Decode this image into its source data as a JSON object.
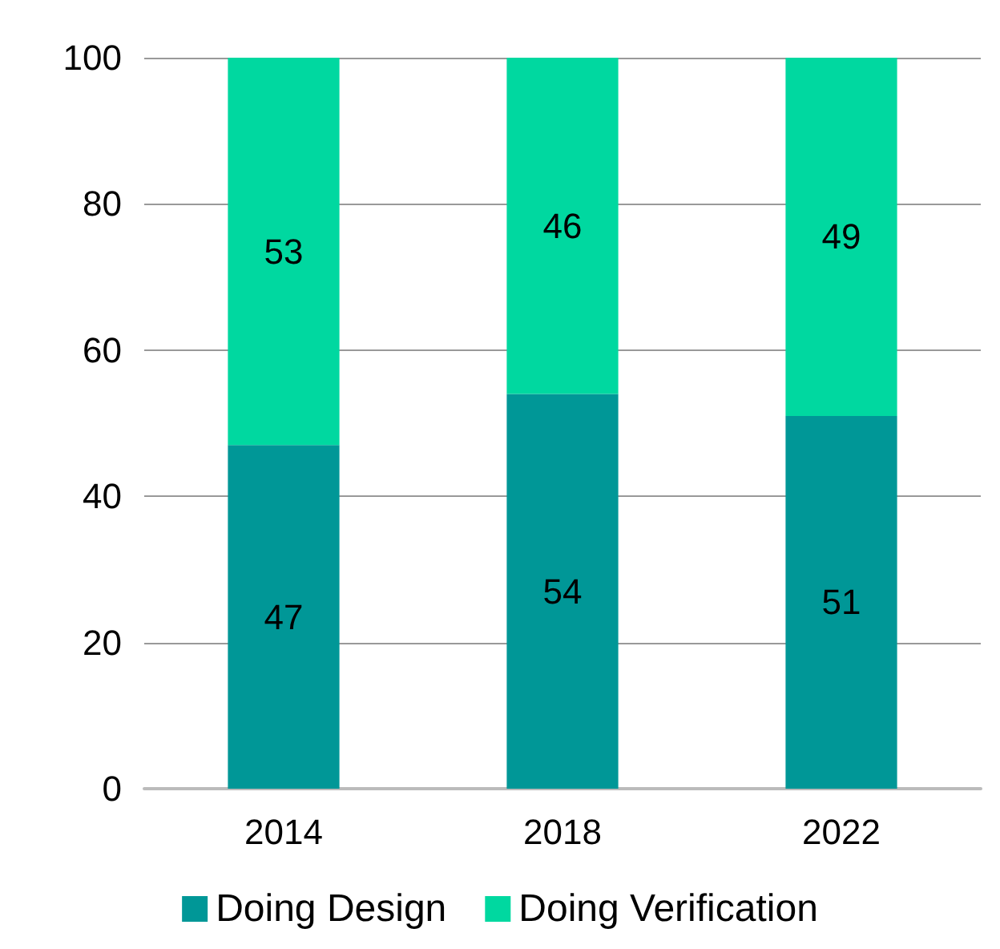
{
  "chart_data": {
    "type": "bar",
    "stacked": true,
    "categories": [
      "2014",
      "2018",
      "2022"
    ],
    "series": [
      {
        "name": "Doing Design",
        "color": "#009797",
        "values": [
          47,
          54,
          51
        ]
      },
      {
        "name": "Doing Verification",
        "color": "#00d8a0",
        "values": [
          53,
          46,
          49
        ]
      }
    ],
    "ylim": [
      0,
      100
    ],
    "yticks": [
      0,
      20,
      40,
      60,
      80,
      100
    ],
    "grid": "y",
    "legend": "bottom",
    "data_labels": true
  }
}
